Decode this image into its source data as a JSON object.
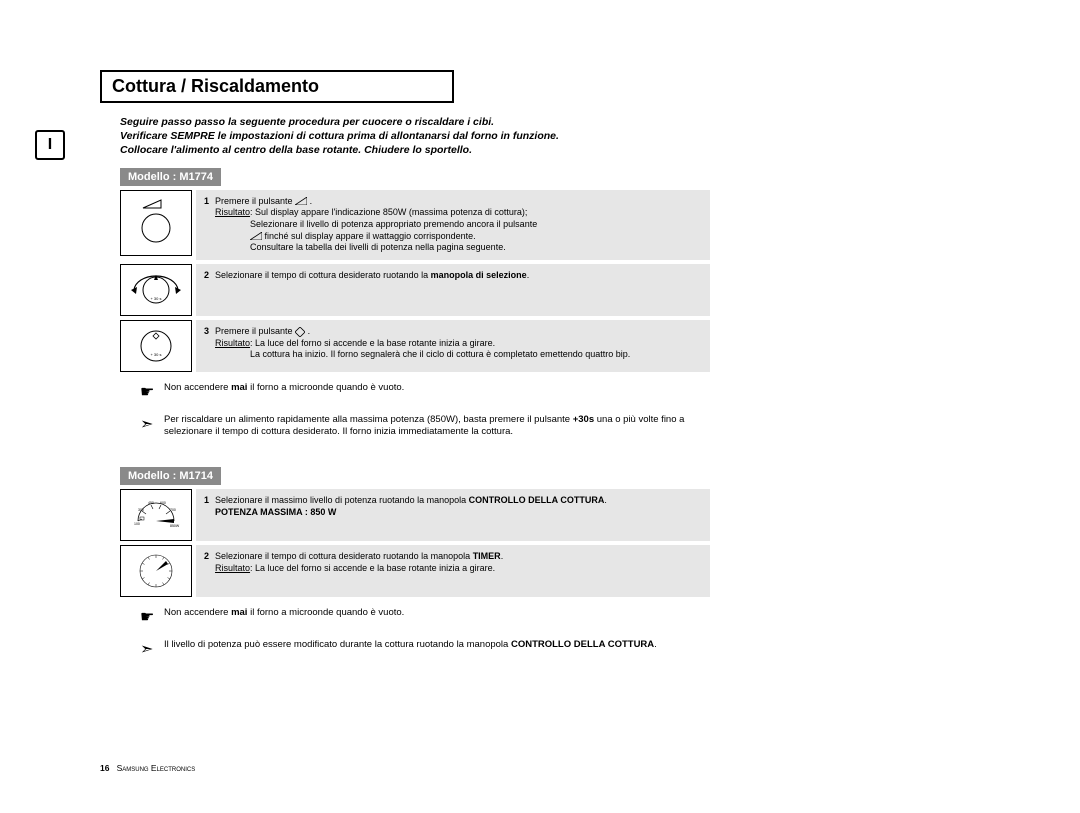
{
  "title": "Cottura / Riscaldamento",
  "intro": {
    "l1": "Seguire passo passo la seguente procedura per cuocere o riscaldare i cibi.",
    "l2": "Verificare SEMPRE le impostazioni di cottura prima di allontanarsi dal forno in funzione.",
    "l3": "Collocare l'alimento al centro della base rotante. Chiudere lo sportello."
  },
  "model1": {
    "tag": "Modello : M1774",
    "steps": [
      {
        "num": "1",
        "body_html": "Premere il pulsante <svg style='display:inline;vertical-align:middle' width='12' height='8'><polygon points='0,8 12,8 12,0' fill='none' stroke='#000' stroke-width='0.8'/></svg> .<br><u>Risultato</u>: Sul display appare l'indicazione 850W (massima potenza di cottura);<br>&nbsp;&nbsp;&nbsp;&nbsp;&nbsp;&nbsp;&nbsp;&nbsp;&nbsp;&nbsp;&nbsp;&nbsp;&nbsp;&nbsp;Selezionare il livello di potenza appropriato premendo ancora il pulsante<br>&nbsp;&nbsp;&nbsp;&nbsp;&nbsp;&nbsp;&nbsp;&nbsp;&nbsp;&nbsp;&nbsp;&nbsp;&nbsp;&nbsp;<svg style='display:inline;vertical-align:middle' width='12' height='8'><polygon points='0,8 12,8 12,0' fill='none' stroke='#000' stroke-width='0.8'/></svg> finché sul display appare il wattaggio corrispondente.<br>&nbsp;&nbsp;&nbsp;&nbsp;&nbsp;&nbsp;&nbsp;&nbsp;&nbsp;&nbsp;&nbsp;&nbsp;&nbsp;&nbsp;Consultare la tabella dei livelli di potenza nella pagina seguente.",
        "icon": "wave-circle"
      },
      {
        "num": "2",
        "body_html": "Selezionare il tempo di cottura desiderato ruotando la <b>manopola di selezione</b>.",
        "icon": "dial-rotate"
      },
      {
        "num": "3",
        "body_html": "Premere il pulsante <svg style='display:inline;vertical-align:middle' width='10' height='10'><polygon points='5,0 10,5 5,10 0,5' fill='none' stroke='#000' stroke-width='0.8'/></svg> .<br><u>Risultato</u>: La luce del forno si accende e la base rotante inizia a girare.<br>&nbsp;&nbsp;&nbsp;&nbsp;&nbsp;&nbsp;&nbsp;&nbsp;&nbsp;&nbsp;&nbsp;&nbsp;&nbsp;&nbsp;La cottura ha inizio. Il forno segnalerà che il ciclo di cottura è completato emettendo quattro bip.",
        "icon": "dial-diamond"
      }
    ],
    "notes": [
      {
        "sym": "hand",
        "html": "Non accendere <b>mai</b> il forno a microonde quando è vuoto."
      },
      {
        "sym": "arrow",
        "html": "Per riscaldare un alimento rapidamente alla massima potenza (850W), basta premere il pulsante <b>+30s</b> una o più volte fino a selezionare il tempo di cottura desiderato. Il forno inizia immediatamente la cottura."
      }
    ]
  },
  "model2": {
    "tag": "Modello : M1714",
    "steps": [
      {
        "num": "1",
        "body_html": "Selezionare il massimo livello di potenza ruotando la manopola <b>CONTROLLO DELLA COTTURA</b>.<br><b>POTENZA MASSIMA : 850 W</b>",
        "icon": "power-dial",
        "labels": [
          "100",
          "300",
          "450",
          "600",
          "700",
          "850W"
        ]
      },
      {
        "num": "2",
        "body_html": "Selezionare il tempo di cottura desiderato ruotando la manopola <b>TIMER</b>.<br><u>Risultato</u>: La luce del forno si accende e la base rotante inizia a girare.",
        "icon": "timer-dial"
      }
    ],
    "notes": [
      {
        "sym": "hand",
        "html": "Non accendere <b>mai</b> il forno a microonde quando è vuoto."
      },
      {
        "sym": "arrow",
        "html": "Il livello di potenza può essere modificato durante la cottura ruotando la manopola <b>CONTROLLO DELLA COTTURA</b>."
      }
    ]
  },
  "footer": {
    "page": "16",
    "company": "Samsung Electronics"
  }
}
